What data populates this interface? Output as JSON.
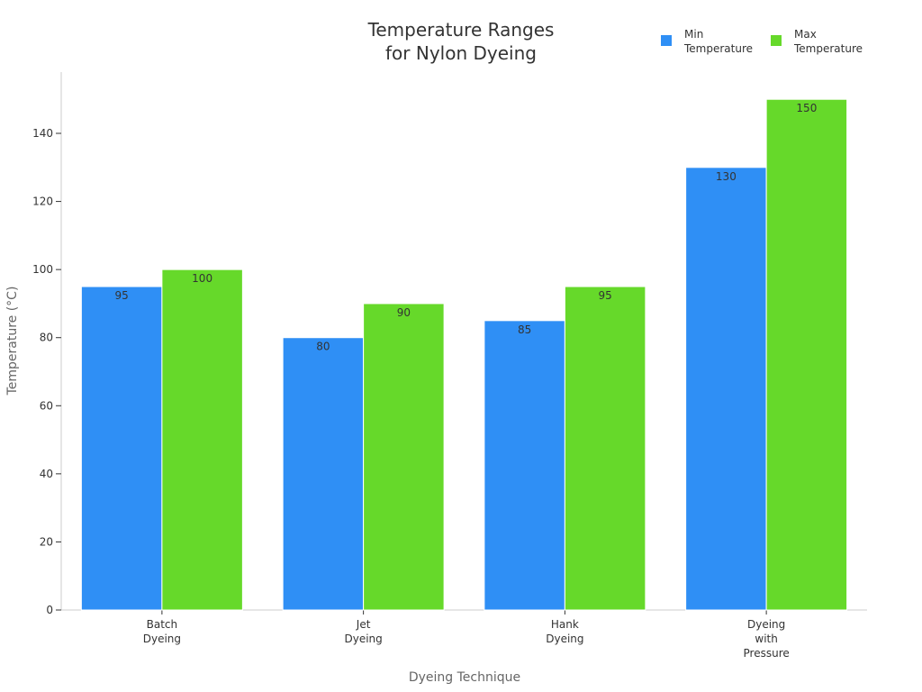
{
  "chart_data": {
    "type": "bar",
    "title": [
      "Temperature Ranges",
      "for Nylon Dyeing"
    ],
    "xlabel": "Dyeing Technique",
    "ylabel": "Temperature (°C)",
    "categories": [
      [
        "Batch",
        "Dyeing"
      ],
      [
        "Jet",
        "Dyeing"
      ],
      [
        "Hank",
        "Dyeing"
      ],
      [
        "Dyeing",
        "with",
        "Pressure"
      ]
    ],
    "series": [
      {
        "name": [
          "Min",
          "Temperature"
        ],
        "color": "#2f8ff5",
        "values": [
          95,
          80,
          85,
          130
        ]
      },
      {
        "name": [
          "Max",
          "Temperature"
        ],
        "color": "#66d92a",
        "values": [
          100,
          90,
          95,
          150
        ]
      }
    ],
    "ylim": [
      0,
      158
    ],
    "yticks": [
      0,
      20,
      40,
      60,
      80,
      100,
      120,
      140
    ],
    "grid": false,
    "legend_position": "top-right",
    "data_labels": true
  }
}
